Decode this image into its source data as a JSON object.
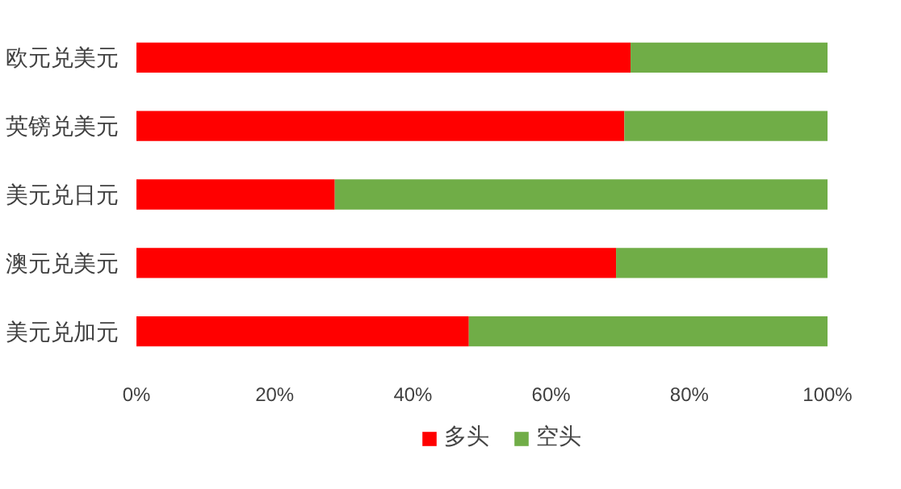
{
  "chart_data": {
    "type": "bar",
    "orientation": "horizontal",
    "stacked": true,
    "categories": [
      "欧元兑美元",
      "英镑兑美元",
      "美元兑日元",
      "澳元兑美元",
      "美元兑加元"
    ],
    "series": [
      {
        "name": "多头",
        "color": "#ff0000",
        "values": [
          71.5,
          70.6,
          28.7,
          69.4,
          48.1
        ]
      },
      {
        "name": "空头",
        "color": "#70ad47",
        "values": [
          28.5,
          29.4,
          71.3,
          30.6,
          51.9
        ]
      }
    ],
    "xlim": [
      0,
      100
    ],
    "xticks": [
      {
        "value": 0,
        "label": "0%"
      },
      {
        "value": 20,
        "label": "20%"
      },
      {
        "value": 40,
        "label": "40%"
      },
      {
        "value": 60,
        "label": "60%"
      },
      {
        "value": 80,
        "label": "80%"
      },
      {
        "value": 100,
        "label": "100%"
      }
    ],
    "grid": false,
    "legend": "bottom"
  }
}
